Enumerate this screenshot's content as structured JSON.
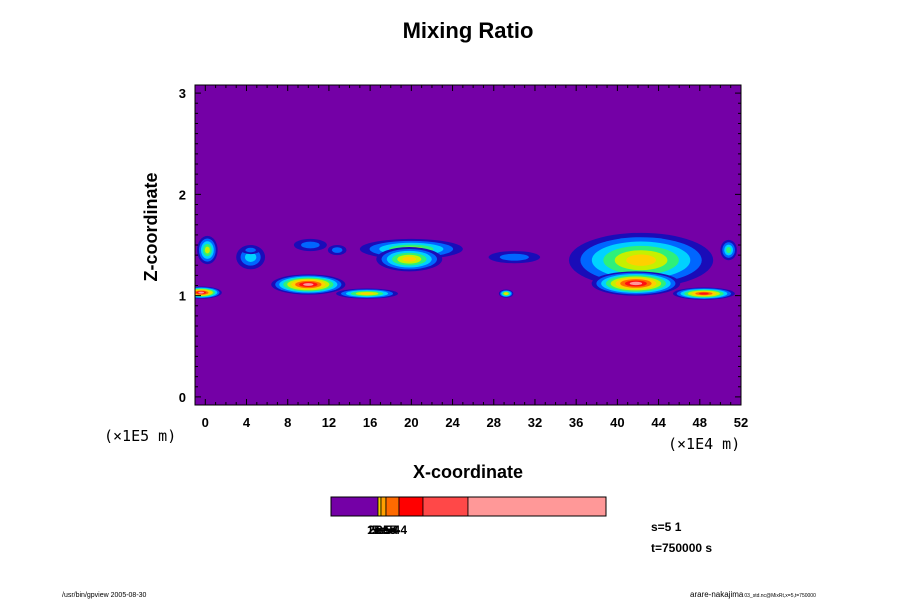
{
  "chart_data": {
    "type": "heatmap",
    "title": "Mixing Ratio",
    "xlabel": "X-coordinate",
    "ylabel": "Z-coordinate",
    "x_unit_label": "(×1E4 m)",
    "y_unit_label": "(×1E5 m)",
    "xlim": [
      -1,
      52
    ],
    "ylim": [
      -0.08,
      3.08
    ],
    "xticks": [
      "0",
      "4",
      "8",
      "12",
      "16",
      "20",
      "24",
      "28",
      "32",
      "36",
      "40",
      "44",
      "48",
      "52"
    ],
    "yticks": [
      "0",
      "1",
      "2",
      "3"
    ],
    "colorbar": {
      "tick_labels": [
        "1e-5",
        "2e-5",
        "5e-5",
        "1e-4",
        "2e-4",
        "5e-4"
      ],
      "colors": [
        "#7400a6",
        "#f2d000",
        "#ffa000",
        "#ff6a00",
        "#ff0000",
        "#ff4848",
        "#ff9898"
      ]
    },
    "background_color": "#7400a6",
    "level_colors": [
      "#1a0cb8",
      "#0066ff",
      "#00d2ff",
      "#2ef07a",
      "#c6f000",
      "#ffd000",
      "#ff6a00",
      "#ff1010",
      "#ff9898"
    ],
    "annotations": [
      "s=5 1",
      "t=750000 s"
    ],
    "blobs": [
      {
        "x": 0.2,
        "z": 1.45,
        "rx": 1.0,
        "rz": 0.14,
        "max": 4
      },
      {
        "x": -0.4,
        "z": 1.03,
        "rx": 2.0,
        "rz": 0.06,
        "max": 8
      },
      {
        "x": 4.4,
        "z": 1.38,
        "rx": 1.4,
        "rz": 0.12,
        "max": 2
      },
      {
        "x": 4.4,
        "z": 1.45,
        "rx": 0.9,
        "rz": 0.04,
        "max": 1
      },
      {
        "x": 10.2,
        "z": 1.5,
        "rx": 1.6,
        "rz": 0.06,
        "max": 1
      },
      {
        "x": 12.8,
        "z": 1.45,
        "rx": 0.9,
        "rz": 0.05,
        "max": 1
      },
      {
        "x": 10.0,
        "z": 1.11,
        "rx": 3.6,
        "rz": 0.1,
        "max": 8
      },
      {
        "x": 15.7,
        "z": 1.02,
        "rx": 3.0,
        "rz": 0.05,
        "max": 5
      },
      {
        "x": 20.0,
        "z": 1.46,
        "rx": 5.0,
        "rz": 0.1,
        "max": 4
      },
      {
        "x": 19.8,
        "z": 1.36,
        "rx": 3.2,
        "rz": 0.12,
        "max": 5
      },
      {
        "x": 30.0,
        "z": 1.38,
        "rx": 2.5,
        "rz": 0.06,
        "max": 1
      },
      {
        "x": 29.2,
        "z": 1.02,
        "rx": 0.7,
        "rz": 0.04,
        "max": 5
      },
      {
        "x": 42.3,
        "z": 1.35,
        "rx": 7.0,
        "rz": 0.27,
        "max": 5
      },
      {
        "x": 41.8,
        "z": 1.12,
        "rx": 4.3,
        "rz": 0.12,
        "max": 8
      },
      {
        "x": 48.4,
        "z": 1.02,
        "rx": 3.0,
        "rz": 0.06,
        "max": 7
      },
      {
        "x": 50.8,
        "z": 1.45,
        "rx": 0.8,
        "rz": 0.1,
        "max": 3
      }
    ]
  },
  "footer": {
    "left": "/usr/bin/gpview 2005-08-30",
    "right_main": "arare-nakajima",
    "right_sub": "03_std.nc@MixRt,x=5,t=750000"
  }
}
